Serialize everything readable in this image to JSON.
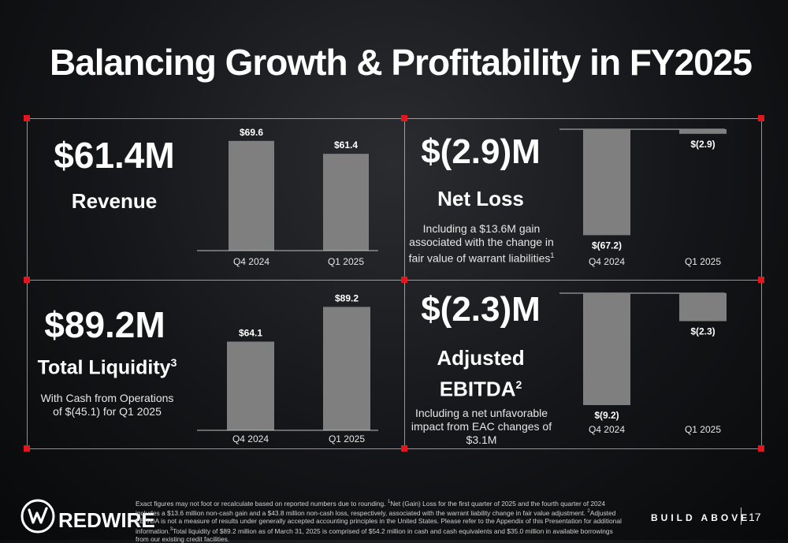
{
  "title": "Balancing Growth & Profitability in FY2025",
  "colors": {
    "accent": "#e1161e",
    "bar": "#7f7f7f",
    "grid": "#ffffff"
  },
  "panels": {
    "revenue": {
      "value": "$61.4M",
      "label": "Revenue"
    },
    "net_loss": {
      "value": "$(2.9)M",
      "label": "Net Loss",
      "note": "Including a $13.6M gain associated with the change in fair value of warrant liabilities",
      "note_sup": "1"
    },
    "liquidity": {
      "value": "$89.2M",
      "label": "Total Liquidity",
      "label_sup": "3",
      "note": "With Cash from Operations of $(45.1) for Q1 2025"
    },
    "adj_ebitda": {
      "value": "$(2.3)M",
      "label_line1": "Adjusted",
      "label_line2": "EBITDA",
      "label_sup": "2",
      "note": "Including a net unfavorable impact from EAC changes of $3.1M"
    }
  },
  "chart_data": [
    {
      "type": "bar",
      "id": "revenue",
      "categories": [
        "Q4 2024",
        "Q1 2025"
      ],
      "values": [
        69.6,
        61.4
      ],
      "labels": [
        "$69.6",
        "$61.4"
      ],
      "title": "",
      "xlabel": "",
      "ylabel": "",
      "ylim": [
        0,
        70
      ]
    },
    {
      "type": "bar",
      "id": "net_loss",
      "categories": [
        "Q4 2024",
        "Q1 2025"
      ],
      "values": [
        -67.2,
        -2.9
      ],
      "labels": [
        "$(67.2)",
        "$(2.9)"
      ],
      "title": "",
      "xlabel": "",
      "ylabel": "",
      "ylim": [
        -68,
        0
      ]
    },
    {
      "type": "bar",
      "id": "liquidity",
      "categories": [
        "Q4 2024",
        "Q1 2025"
      ],
      "values": [
        64.1,
        89.2
      ],
      "labels": [
        "$64.1",
        "$89.2"
      ],
      "title": "",
      "xlabel": "",
      "ylabel": "",
      "ylim": [
        0,
        90
      ]
    },
    {
      "type": "bar",
      "id": "adj_ebitda",
      "categories": [
        "Q4 2024",
        "Q1 2025"
      ],
      "values": [
        -9.2,
        -2.3
      ],
      "labels": [
        "$(9.2)",
        "$(2.3)"
      ],
      "title": "",
      "xlabel": "",
      "ylabel": "",
      "ylim": [
        -9.2,
        0
      ]
    }
  ],
  "footer": {
    "p1": "Exact figures may not foot or recalculate based on reported numbers due to rounding. ",
    "s1": "1",
    "p2": "Net (Gain) Loss for the first quarter of 2025 and the fourth quarter of 2024 includes a $13.6 million non-cash gain and a $43.8 million non-cash loss, respectively, associated with the warrant liability change in fair value adjustment. ",
    "s2": "2",
    "p3": "Adjusted EBITDA is not a measure of results under generally accepted accounting principles in the United States. Please refer to the Appendix of this Presentation for additional information.",
    "s3": "3",
    "p4": "Total liquidity of $89.2 million as of March 31, 2025 is comprised of $54.2 million in cash and cash equivalents and $35.0 million in available borrowings from our existing credit facilities."
  },
  "brand": {
    "name": "REDWIRE",
    "logo_icon": "redwire-logo-icon",
    "tagline": "BUILD ABOVE"
  },
  "page_number": "17"
}
